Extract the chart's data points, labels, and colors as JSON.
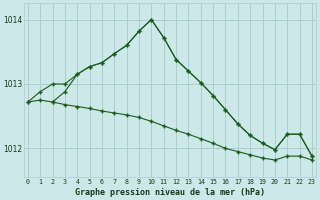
{
  "title": "Graphe pression niveau de la mer (hPa)",
  "bg_color": "#cce8e8",
  "grid_color": "#aacece",
  "line_color": "#1a5c1a",
  "x_ticks": [
    0,
    1,
    2,
    3,
    4,
    5,
    6,
    7,
    8,
    9,
    10,
    11,
    12,
    13,
    14,
    15,
    16,
    17,
    18,
    19,
    20,
    21,
    22,
    23
  ],
  "y_ticks": [
    1012,
    1013,
    1014
  ],
  "ylim": [
    1011.55,
    1014.25
  ],
  "xlim": [
    -0.3,
    23.3
  ],
  "series1": {
    "x": [
      0,
      1,
      2,
      3,
      4,
      5,
      6,
      7,
      8,
      9,
      10,
      11,
      12,
      13,
      14,
      15,
      16,
      17,
      18,
      19,
      20,
      21,
      22,
      23
    ],
    "y": [
      1012.72,
      1012.88,
      1013.0,
      1013.0,
      1013.15,
      1013.27,
      1013.33,
      1013.47,
      1013.6,
      1013.82,
      1014.0,
      1013.72,
      1013.38,
      1013.2,
      1013.02,
      1012.82,
      1012.6,
      1012.38,
      1012.2,
      1012.08,
      1011.98,
      1012.22,
      1012.22,
      1011.88
    ]
  },
  "series2": {
    "x": [
      0,
      1,
      2,
      3,
      4,
      5,
      6,
      7,
      8,
      9,
      10,
      11,
      12,
      13,
      14,
      15,
      16,
      17,
      18,
      19,
      20,
      21,
      22,
      23
    ],
    "y": [
      1012.72,
      1012.75,
      1012.72,
      1012.68,
      1012.65,
      1012.62,
      1012.58,
      1012.55,
      1012.52,
      1012.48,
      1012.42,
      1012.35,
      1012.28,
      1012.22,
      1012.15,
      1012.08,
      1012.0,
      1011.95,
      1011.9,
      1011.85,
      1011.82,
      1011.88,
      1011.88,
      1011.82
    ]
  },
  "series3": {
    "x": [
      2,
      3,
      4,
      5,
      6,
      7,
      8,
      9,
      10,
      11,
      12,
      13,
      14,
      15,
      16,
      17,
      18,
      19,
      20,
      21,
      22,
      23
    ],
    "y": [
      1012.72,
      1012.88,
      1013.15,
      1013.27,
      1013.33,
      1013.47,
      1013.6,
      1013.82,
      1014.0,
      1013.72,
      1013.38,
      1013.2,
      1013.02,
      1012.82,
      1012.6,
      1012.38,
      1012.2,
      1012.08,
      1011.98,
      1012.22,
      1012.22,
      1011.88
    ]
  }
}
